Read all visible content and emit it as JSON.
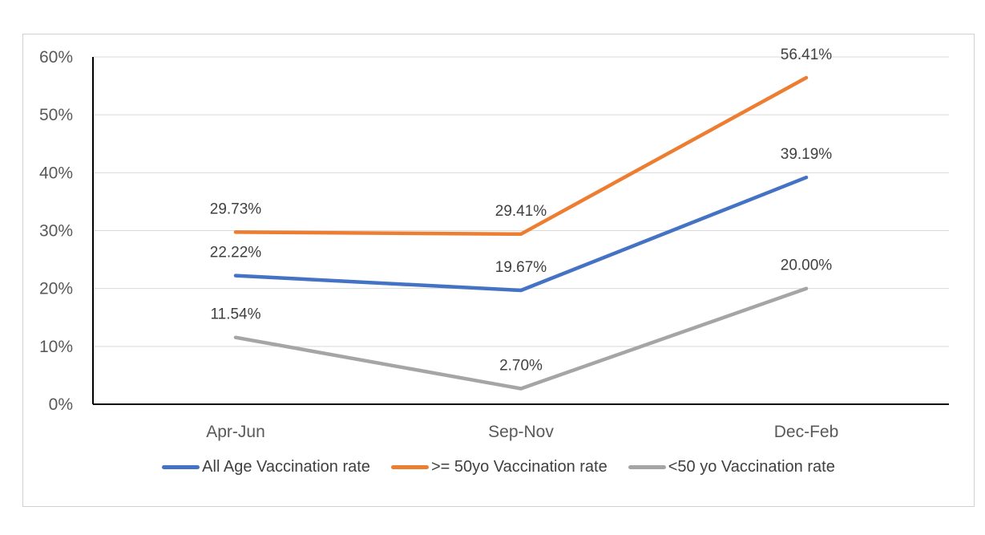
{
  "chart_data": {
    "type": "line",
    "title": "",
    "categories": [
      "Apr-Jun",
      "Sep-Nov",
      "Dec-Feb"
    ],
    "series": [
      {
        "name": "All Age Vaccination rate",
        "color": "#4472C4",
        "values": [
          22.22,
          19.67,
          39.19
        ],
        "data_labels": [
          "22.22%",
          "19.67%",
          "39.19%"
        ]
      },
      {
        "name": ">= 50yo Vaccination rate",
        "color": "#ED7D31",
        "values": [
          29.73,
          29.41,
          56.41
        ],
        "data_labels": [
          "29.73%",
          "29.41%",
          "56.41%"
        ]
      },
      {
        "name": "<50 yo Vaccination rate",
        "color": "#A5A5A5",
        "values": [
          11.54,
          2.7,
          20.0
        ],
        "data_labels": [
          "11.54%",
          "2.70%",
          "20.00%"
        ]
      }
    ],
    "y_axis": {
      "min": 0,
      "max": 60,
      "step": 10,
      "tick_labels": [
        "0%",
        "10%",
        "20%",
        "30%",
        "40%",
        "50%",
        "60%"
      ]
    },
    "x_axis": {
      "tick_labels": [
        "Apr-Jun",
        "Sep-Nov",
        "Dec-Feb"
      ]
    },
    "legend": {
      "position": "bottom",
      "entries": [
        "All Age Vaccination rate",
        ">= 50yo Vaccination rate",
        "<50 yo Vaccination rate"
      ]
    },
    "grid": true
  },
  "styles": {
    "axis_label_color": "#595959",
    "data_label_color": "#404040",
    "gridline_color": "#D9D9D9",
    "axis_line_color": "#000000",
    "frame_border_color": "#D0D0D0",
    "background": "#FFFFFF"
  }
}
